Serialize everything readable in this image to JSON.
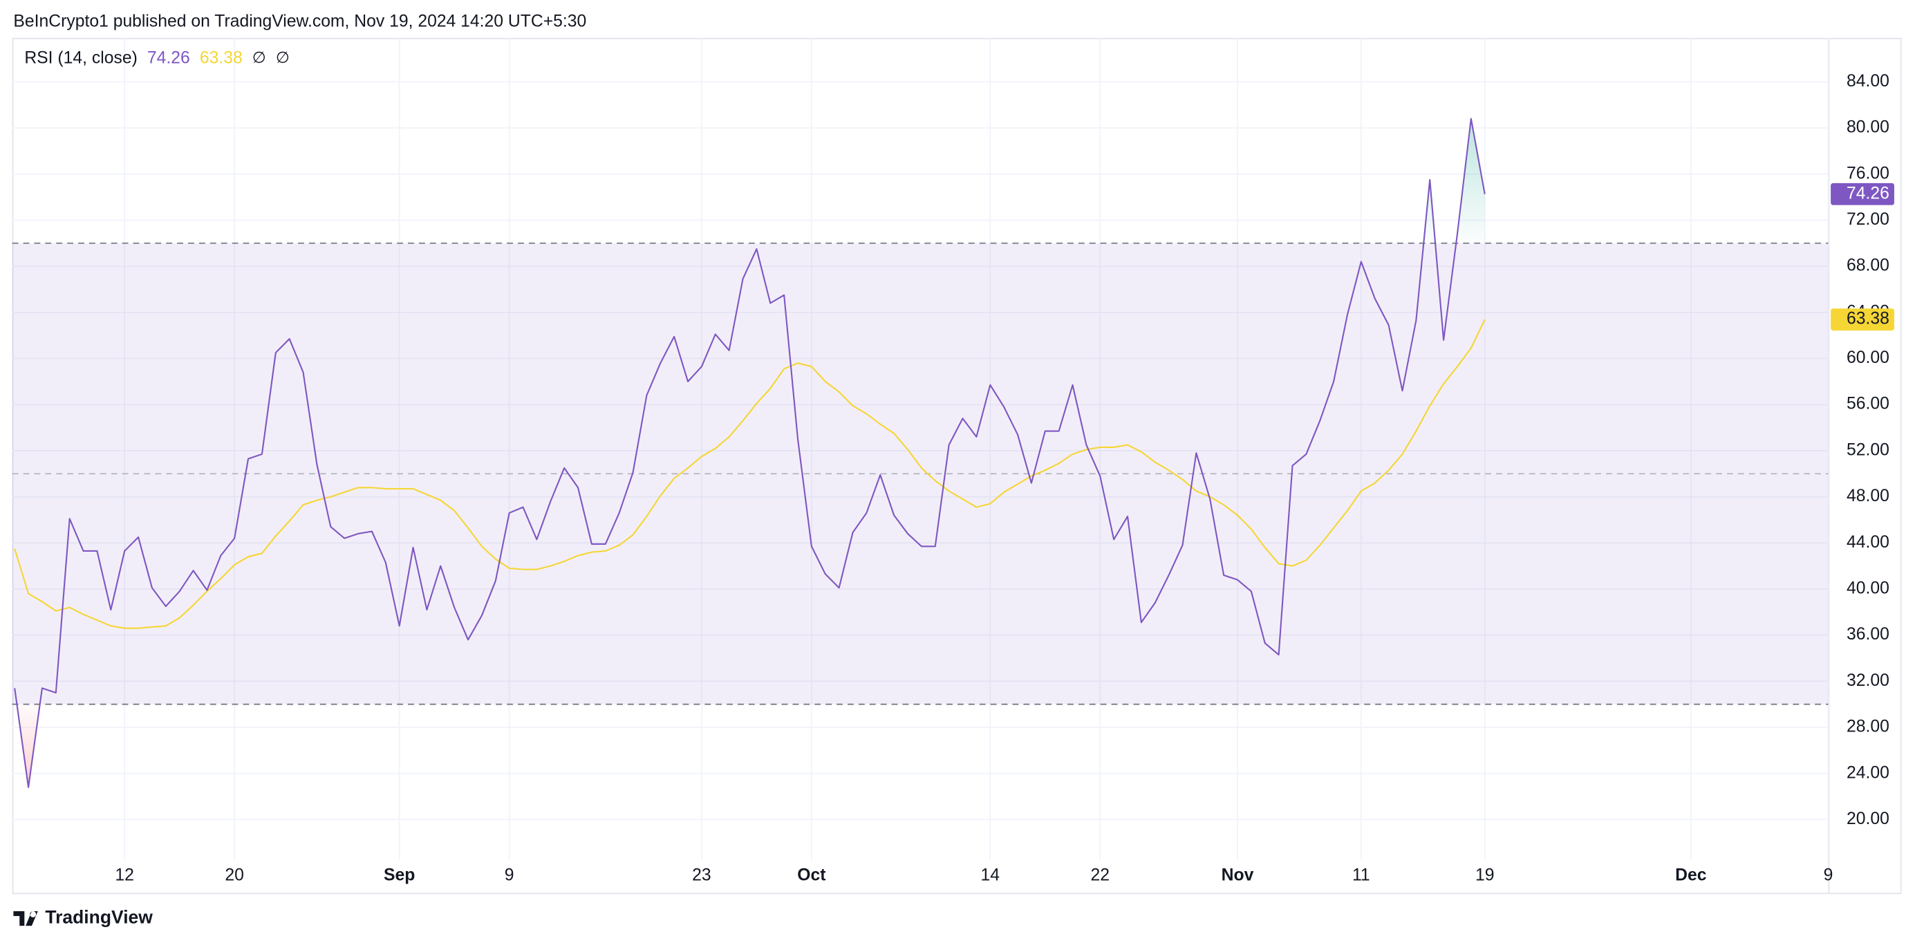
{
  "header": {
    "text": "BeInCrypto1 published on TradingView.com, Nov 19, 2024 14:20 UTC+5:30"
  },
  "footer": {
    "logo_text": "TradingView"
  },
  "chart_data": {
    "type": "line",
    "title": "RSI (14, close)",
    "legend_symbols": [
      "∅",
      "∅"
    ],
    "categories": [
      null,
      null,
      null,
      null,
      null,
      null,
      null,
      null,
      "12",
      null,
      null,
      null,
      null,
      null,
      null,
      null,
      "20",
      null,
      null,
      null,
      null,
      null,
      null,
      null,
      null,
      null,
      null,
      null,
      "Sep",
      null,
      null,
      null,
      null,
      null,
      null,
      null,
      "9",
      null,
      null,
      null,
      null,
      null,
      null,
      null,
      null,
      null,
      null,
      null,
      null,
      null,
      "23",
      null,
      null,
      null,
      null,
      null,
      null,
      null,
      "Oct",
      null,
      null,
      null,
      null,
      null,
      null,
      null,
      null,
      null,
      null,
      null,
      null,
      "14",
      null,
      null,
      null,
      null,
      null,
      null,
      null,
      "22",
      null,
      null,
      null,
      null,
      null,
      null,
      null,
      null,
      null,
      "Nov",
      null,
      null,
      null,
      null,
      null,
      null,
      null,
      null,
      "11",
      null,
      null,
      null,
      null,
      null,
      null,
      null,
      null,
      "19",
      null,
      null,
      null,
      null,
      null,
      null,
      null,
      null,
      null,
      null,
      null,
      null,
      null,
      null,
      "Dec",
      null,
      null,
      null,
      null,
      null,
      null,
      null,
      null,
      null,
      "9"
    ],
    "series": [
      {
        "color": "#7e57c2",
        "values": [
          31.4,
          22.8,
          31.4,
          31.0,
          46.1,
          43.3,
          43.3,
          38.2,
          43.3,
          44.5,
          40.1,
          38.5,
          39.8,
          41.6,
          39.9,
          42.9,
          44.4,
          51.3,
          51.7,
          60.5,
          61.7,
          58.8,
          50.8,
          45.4,
          44.4,
          44.8,
          45.0,
          42.3,
          36.8,
          43.6,
          38.2,
          42.0,
          38.4,
          35.6,
          37.7,
          40.7,
          46.6,
          47.1,
          44.3,
          47.6,
          50.5,
          48.8,
          43.9,
          43.9,
          46.6,
          50.1,
          56.8,
          59.6,
          61.9,
          58.0,
          59.3,
          62.1,
          60.7,
          66.9,
          69.5,
          64.8,
          65.5,
          53.0,
          43.7,
          41.3,
          40.1,
          44.9,
          46.6,
          49.9,
          46.4,
          44.8,
          43.7,
          43.7,
          52.5,
          54.8,
          53.2,
          57.7,
          55.8,
          53.4,
          49.2,
          53.7,
          53.7,
          57.7,
          52.5,
          49.8,
          44.3,
          46.3,
          37.1,
          38.8,
          41.2,
          43.8,
          51.8,
          47.8,
          41.2,
          40.8,
          39.8,
          35.3,
          34.3,
          50.7,
          51.7,
          54.6,
          58.0,
          63.8,
          68.4,
          65.2,
          62.9,
          57.2,
          63.3,
          75.5,
          61.6,
          70.8,
          80.8,
          74.26,
          null,
          null,
          null,
          null,
          null,
          null,
          null,
          null,
          null,
          null,
          null,
          null,
          null,
          null,
          null,
          null,
          null,
          null,
          null,
          null,
          null,
          null,
          null,
          null,
          null
        ]
      },
      {
        "color": "#f5d635",
        "values": [
          43.5,
          39.6,
          38.9,
          38.1,
          38.4,
          37.8,
          37.3,
          36.8,
          36.6,
          36.6,
          36.7,
          36.8,
          37.5,
          38.6,
          39.8,
          40.9,
          42.1,
          42.8,
          43.1,
          44.6,
          45.9,
          47.3,
          47.7,
          48.0,
          48.4,
          48.8,
          48.8,
          48.7,
          48.7,
          48.7,
          48.2,
          47.7,
          46.8,
          45.3,
          43.7,
          42.6,
          41.8,
          41.7,
          41.7,
          42.0,
          42.4,
          42.9,
          43.2,
          43.3,
          43.8,
          44.7,
          46.3,
          48.1,
          49.6,
          50.5,
          51.5,
          52.2,
          53.2,
          54.6,
          56.1,
          57.4,
          59.1,
          59.6,
          59.3,
          58.0,
          57.1,
          55.9,
          55.2,
          54.3,
          53.5,
          52.1,
          50.5,
          49.4,
          48.5,
          47.8,
          47.1,
          47.4,
          48.4,
          49.1,
          49.8,
          50.3,
          50.9,
          51.7,
          52.1,
          52.3,
          52.3,
          52.5,
          51.9,
          51.0,
          50.3,
          49.5,
          48.5,
          48.0,
          47.3,
          46.4,
          45.2,
          43.6,
          42.2,
          42.0,
          42.5,
          43.8,
          45.3,
          46.8,
          48.5,
          49.2,
          50.3,
          51.7,
          53.7,
          55.9,
          57.8,
          59.3,
          60.9,
          63.38,
          null,
          null,
          null,
          null,
          null,
          null,
          null,
          null,
          null,
          null,
          null,
          null,
          null,
          null,
          null,
          null,
          null,
          null,
          null,
          null,
          null,
          null,
          null,
          null,
          null
        ]
      }
    ],
    "ylim": [
      16.5,
      87.81
    ],
    "yticks": [
      {
        "value": 20,
        "label": "20.00"
      },
      {
        "value": 24,
        "label": "24.00"
      },
      {
        "value": 28,
        "label": "28.00"
      },
      {
        "value": 32,
        "label": "32.00"
      },
      {
        "value": 36,
        "label": "36.00"
      },
      {
        "value": 40,
        "label": "40.00"
      },
      {
        "value": 44,
        "label": "44.00"
      },
      {
        "value": 48,
        "label": "48.00"
      },
      {
        "value": 52,
        "label": "52.00"
      },
      {
        "value": 56,
        "label": "56.00"
      },
      {
        "value": 60,
        "label": "60.00"
      },
      {
        "value": 64,
        "label": "64.00"
      },
      {
        "value": 68,
        "label": "68.00"
      },
      {
        "value": 72,
        "label": "72.00"
      },
      {
        "value": 76,
        "label": "76.00"
      },
      {
        "value": 80,
        "label": "80.00"
      },
      {
        "value": 84,
        "label": "84.00"
      }
    ],
    "grid": true,
    "bands": {
      "upper": 70,
      "middle": 50,
      "lower": 30
    },
    "band_color": "#7e57c2",
    "overbought_color": "#22ab94",
    "oversold_color": "#f23645"
  }
}
